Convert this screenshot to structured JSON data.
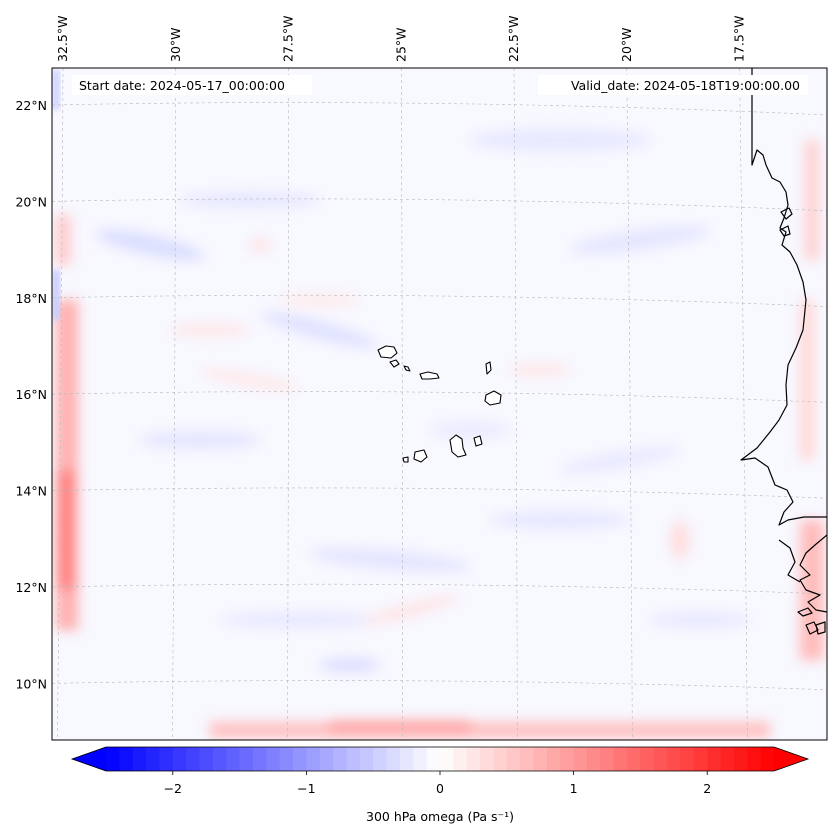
{
  "map": {
    "start_date_label": "Start date: 2024-05-17_00:00:00",
    "valid_date_label": "Valid_date: 2024-05-18T19:00:00.00",
    "longitude_labels": [
      "32.5°W",
      "30°W",
      "27.5°W",
      "25°W",
      "22.5°W",
      "20°W",
      "17.5°W"
    ],
    "latitude_labels": [
      "22°N",
      "20°N",
      "18°N",
      "16°N",
      "14°N",
      "12°N",
      "10°N"
    ],
    "longitudes": [
      -32.5,
      -30,
      -27.5,
      -25,
      -22.5,
      -20,
      -17.5
    ],
    "latitudes": [
      22,
      20,
      18,
      16,
      14,
      12,
      10
    ],
    "extent": {
      "lon_min": -33.3,
      "lon_max": -15.8,
      "lat_min": 8.9,
      "lat_max": 22.8
    },
    "colormap": {
      "name": "bwr",
      "min_color": "#0000ff",
      "mid_color": "#ffffff",
      "max_color": "#ff0000"
    }
  },
  "colorbar": {
    "label": "300 hPa omega (Pa s⁻¹)",
    "tick_values": [
      -2,
      -1,
      0,
      1,
      2
    ],
    "tick_labels": [
      "−2",
      "−1",
      "0",
      "1",
      "2"
    ],
    "range": [
      -2.5,
      2.5
    ],
    "extend": "both"
  }
}
